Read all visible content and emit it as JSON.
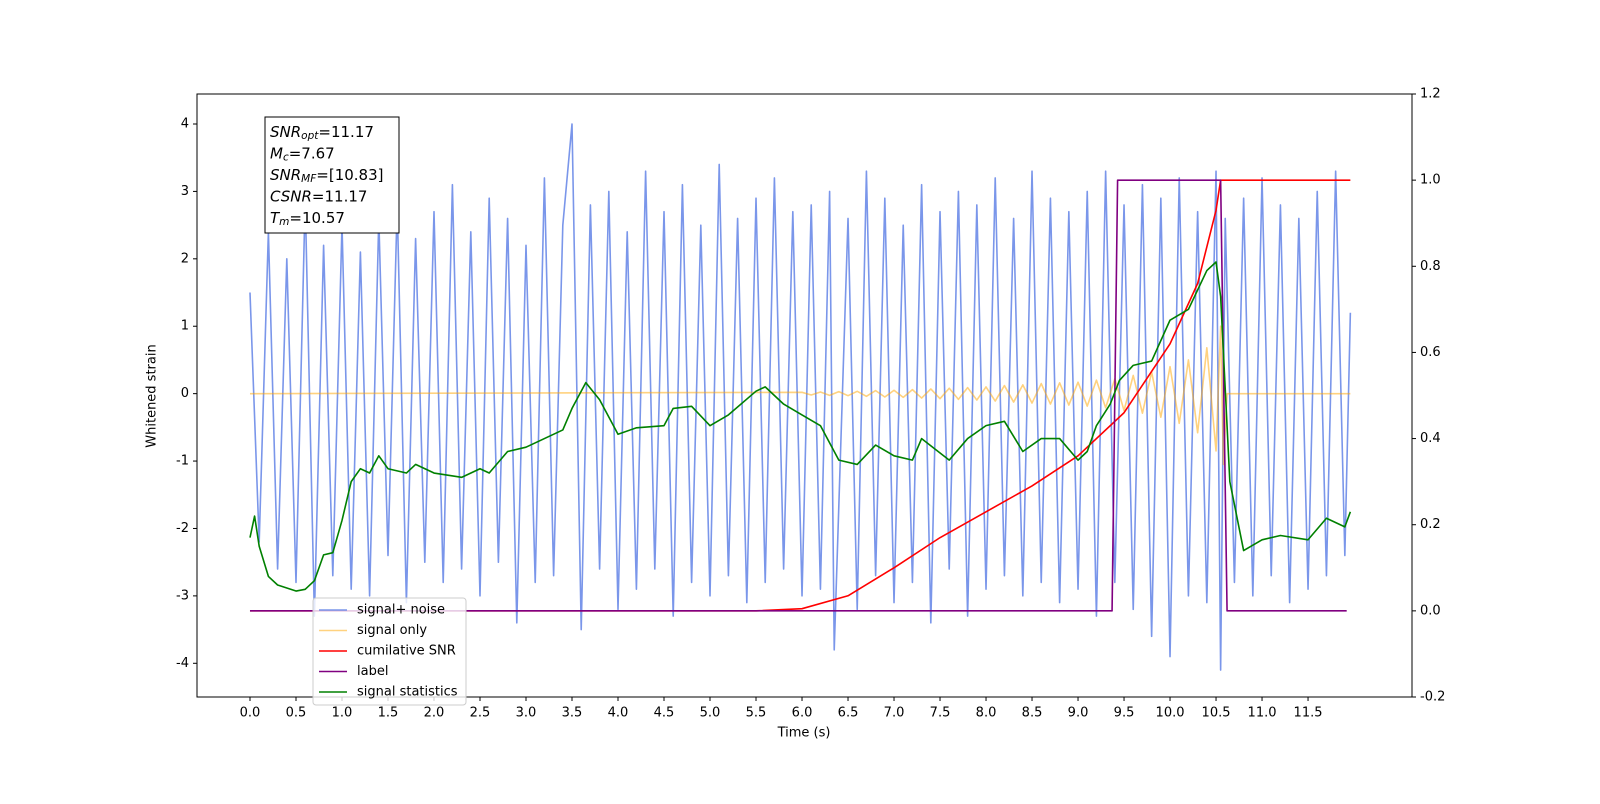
{
  "chart_data": {
    "type": "line",
    "xlabel": "Time (s)",
    "ylabel": "Whitened strain",
    "xlim": [
      -0.576,
      12.63
    ],
    "ylim": [
      -4.5,
      4.445
    ],
    "y2lim": [
      -0.2,
      1.2
    ],
    "xticks": [
      {
        "value": 0,
        "label": "0.0"
      },
      0.5,
      {
        "value": 1,
        "label": "1.0"
      },
      1.5,
      {
        "value": 2,
        "label": "2.0"
      },
      2.5,
      {
        "value": 3,
        "label": "3.0"
      },
      3.5,
      {
        "value": 4,
        "label": "4.0"
      },
      4.5,
      {
        "value": 5,
        "label": "5.0"
      },
      5.5,
      {
        "value": 6,
        "label": "6.0"
      },
      6.5,
      {
        "value": 7,
        "label": "7.0"
      },
      7.5,
      {
        "value": 8,
        "label": "8.0"
      },
      8.5,
      {
        "value": 9,
        "label": "9.0"
      },
      9.5,
      {
        "value": 10,
        "label": "10.0"
      },
      10.5,
      {
        "value": 11,
        "label": "11.0"
      },
      11.5
    ],
    "yticks": [
      -4,
      -3,
      -2,
      -1,
      0,
      1,
      2,
      3,
      4
    ],
    "y2ticks": [
      -0.2,
      {
        "value": 0,
        "label": "0.0"
      },
      0.2,
      0.4,
      0.6,
      0.8,
      {
        "value": 1,
        "label": "1.0"
      },
      1.2
    ],
    "legend": "lower left",
    "annotation": [
      {
        "symbol": "SNR",
        "subscript": "opt",
        "text": "=11.17"
      },
      {
        "symbol": "M",
        "subscript": "c",
        "text": "=7.67"
      },
      {
        "symbol": "SNR",
        "subscript": "MF",
        "text": "=[10.83]"
      },
      {
        "symbol": "CSNR",
        "text": "=11.17"
      },
      {
        "symbol": "T",
        "subscript": "m",
        "text": "=10.57"
      }
    ],
    "series": [
      {
        "name": "signal+ noise",
        "color": "#4169e1",
        "alpha": 0.7,
        "x": [
          0.0,
          0.1,
          0.2,
          0.3,
          0.4,
          0.5,
          0.6,
          0.7,
          0.8,
          0.9,
          1.0,
          1.1,
          1.2,
          1.3,
          1.4,
          1.5,
          1.6,
          1.7,
          1.8,
          1.9,
          2.0,
          2.1,
          2.2,
          2.3,
          2.4,
          2.5,
          2.6,
          2.7,
          2.8,
          2.9,
          3.0,
          3.1,
          3.2,
          3.3,
          3.4,
          3.5,
          3.6,
          3.7,
          3.8,
          3.9,
          4.0,
          4.1,
          4.2,
          4.3,
          4.4,
          4.5,
          4.6,
          4.7,
          4.8,
          4.9,
          5.0,
          5.1,
          5.2,
          5.3,
          5.4,
          5.5,
          5.6,
          5.7,
          5.8,
          5.9,
          6.0,
          6.1,
          6.2,
          6.3,
          6.35,
          6.5,
          6.6,
          6.7,
          6.8,
          6.9,
          7.0,
          7.1,
          7.2,
          7.3,
          7.4,
          7.5,
          7.6,
          7.7,
          7.8,
          7.9,
          8.0,
          8.1,
          8.2,
          8.3,
          8.4,
          8.5,
          8.6,
          8.7,
          8.8,
          8.9,
          9.0,
          9.1,
          9.2,
          9.3,
          9.4,
          9.5,
          9.6,
          9.7,
          9.8,
          9.9,
          10.0,
          10.1,
          10.2,
          10.3,
          10.4,
          10.5,
          10.55,
          10.6,
          10.7,
          10.8,
          10.9,
          11.0,
          11.1,
          11.2,
          11.3,
          11.4,
          11.5,
          11.6,
          11.7,
          11.8,
          11.9,
          11.96
        ],
        "values": [
          1.5,
          -2.2,
          2.4,
          -2.6,
          2.0,
          -2.8,
          2.9,
          -3.3,
          2.2,
          -2.7,
          2.5,
          -2.9,
          2.1,
          -3.0,
          2.6,
          -2.4,
          2.8,
          -3.1,
          2.3,
          -2.5,
          2.7,
          -2.8,
          3.1,
          -2.6,
          2.4,
          -3.0,
          2.9,
          -2.5,
          2.6,
          -3.4,
          2.2,
          -2.8,
          3.2,
          -2.7,
          2.5,
          4.0,
          -3.5,
          2.8,
          -2.6,
          3.0,
          -3.2,
          2.4,
          -2.9,
          3.3,
          -2.6,
          2.7,
          -3.3,
          3.1,
          -2.8,
          2.5,
          -3.0,
          3.4,
          -2.7,
          2.6,
          -3.1,
          2.9,
          -2.8,
          3.2,
          -2.6,
          2.7,
          -3.0,
          2.8,
          -2.9,
          3.0,
          -3.8,
          2.6,
          -3.2,
          3.3,
          -2.7,
          2.9,
          -3.1,
          2.5,
          -2.8,
          3.1,
          -3.4,
          2.7,
          -2.6,
          3.0,
          -3.3,
          2.8,
          -2.9,
          3.2,
          -2.7,
          2.6,
          -3.0,
          3.3,
          -2.8,
          2.9,
          -3.1,
          2.7,
          -2.9,
          3.0,
          -3.3,
          3.3,
          -2.8,
          2.8,
          -3.2,
          3.1,
          -3.6,
          2.9,
          -3.9,
          3.2,
          -3.0,
          2.7,
          -3.1,
          3.3,
          -4.1,
          2.6,
          -2.8,
          2.9,
          -3.0,
          3.2,
          -2.7,
          2.8,
          -3.1,
          2.6,
          -2.9,
          3.0,
          -2.7,
          3.3,
          -2.4,
          1.2
        ]
      },
      {
        "name": "signal only",
        "color": "#ffa500",
        "alpha": 0.5,
        "x": [
          0.0,
          6.0,
          6.1,
          6.2,
          6.3,
          6.4,
          6.5,
          6.6,
          6.7,
          6.8,
          6.9,
          7.0,
          7.1,
          7.2,
          7.3,
          7.4,
          7.5,
          7.6,
          7.7,
          7.8,
          7.9,
          8.0,
          8.1,
          8.2,
          8.3,
          8.4,
          8.5,
          8.6,
          8.7,
          8.8,
          8.9,
          9.0,
          9.1,
          9.2,
          9.3,
          9.4,
          9.5,
          9.6,
          9.7,
          9.8,
          9.9,
          10.0,
          10.1,
          10.2,
          10.3,
          10.4,
          10.5,
          10.55,
          10.58,
          10.62,
          11.96
        ],
        "values": [
          0,
          0.02,
          -0.02,
          0.025,
          -0.025,
          0.03,
          -0.03,
          0.035,
          -0.04,
          0.045,
          -0.05,
          0.05,
          -0.055,
          0.06,
          -0.065,
          0.07,
          -0.075,
          0.08,
          -0.085,
          0.09,
          -0.095,
          0.1,
          -0.11,
          0.12,
          -0.125,
          0.13,
          -0.14,
          0.15,
          -0.155,
          0.16,
          -0.17,
          0.17,
          -0.185,
          0.2,
          -0.21,
          0.22,
          -0.25,
          0.27,
          -0.29,
          0.32,
          -0.35,
          0.4,
          -0.44,
          0.5,
          -0.58,
          0.68,
          -0.85,
          1.0,
          -1.05,
          0,
          0
        ]
      },
      {
        "name": "cumilative SNR",
        "color": "#ff0000",
        "alpha": 1,
        "axis": "y2",
        "x": [
          0.0,
          5.5,
          6.0,
          6.5,
          7.0,
          7.5,
          8.0,
          8.5,
          9.0,
          9.5,
          10.0,
          10.3,
          10.5,
          10.55,
          11.96
        ],
        "values": [
          0,
          0,
          0.005,
          0.035,
          0.1,
          0.17,
          0.23,
          0.29,
          0.36,
          0.46,
          0.62,
          0.76,
          0.93,
          1.0,
          1.0
        ]
      },
      {
        "name": "label",
        "color": "#800080",
        "alpha": 1,
        "axis": "y2",
        "x": [
          0.0,
          9.37,
          9.43,
          10.55,
          10.62,
          11.92
        ],
        "values": [
          0,
          0,
          1,
          1,
          0,
          0
        ]
      },
      {
        "name": "signal statistics",
        "color": "#008000",
        "alpha": 1,
        "axis": "y2",
        "x": [
          0.0,
          0.05,
          0.1,
          0.2,
          0.3,
          0.5,
          0.6,
          0.7,
          0.8,
          0.9,
          1.0,
          1.1,
          1.2,
          1.3,
          1.4,
          1.5,
          1.7,
          1.8,
          2.0,
          2.3,
          2.5,
          2.6,
          2.8,
          3.0,
          3.2,
          3.4,
          3.5,
          3.65,
          3.8,
          4.0,
          4.2,
          4.5,
          4.6,
          4.8,
          5.0,
          5.2,
          5.5,
          5.6,
          5.8,
          6.0,
          6.2,
          6.4,
          6.6,
          6.8,
          7.0,
          7.2,
          7.3,
          7.6,
          7.8,
          8.0,
          8.2,
          8.4,
          8.6,
          8.8,
          9.0,
          9.1,
          9.2,
          9.35,
          9.45,
          9.6,
          9.8,
          10.0,
          10.2,
          10.4,
          10.5,
          10.55,
          10.65,
          10.8,
          11.0,
          11.2,
          11.5,
          11.7,
          11.9,
          11.96
        ],
        "values": [
          0.17,
          0.22,
          0.15,
          0.08,
          0.06,
          0.046,
          0.05,
          0.07,
          0.13,
          0.135,
          0.21,
          0.3,
          0.33,
          0.32,
          0.36,
          0.33,
          0.32,
          0.34,
          0.32,
          0.31,
          0.33,
          0.32,
          0.37,
          0.38,
          0.4,
          0.42,
          0.47,
          0.53,
          0.49,
          0.41,
          0.425,
          0.43,
          0.47,
          0.475,
          0.43,
          0.455,
          0.51,
          0.52,
          0.48,
          0.455,
          0.43,
          0.35,
          0.34,
          0.385,
          0.36,
          0.35,
          0.4,
          0.35,
          0.4,
          0.43,
          0.44,
          0.37,
          0.4,
          0.4,
          0.35,
          0.37,
          0.43,
          0.48,
          0.535,
          0.57,
          0.58,
          0.675,
          0.7,
          0.79,
          0.81,
          0.73,
          0.3,
          0.14,
          0.165,
          0.175,
          0.165,
          0.215,
          0.195,
          0.23
        ]
      }
    ]
  }
}
